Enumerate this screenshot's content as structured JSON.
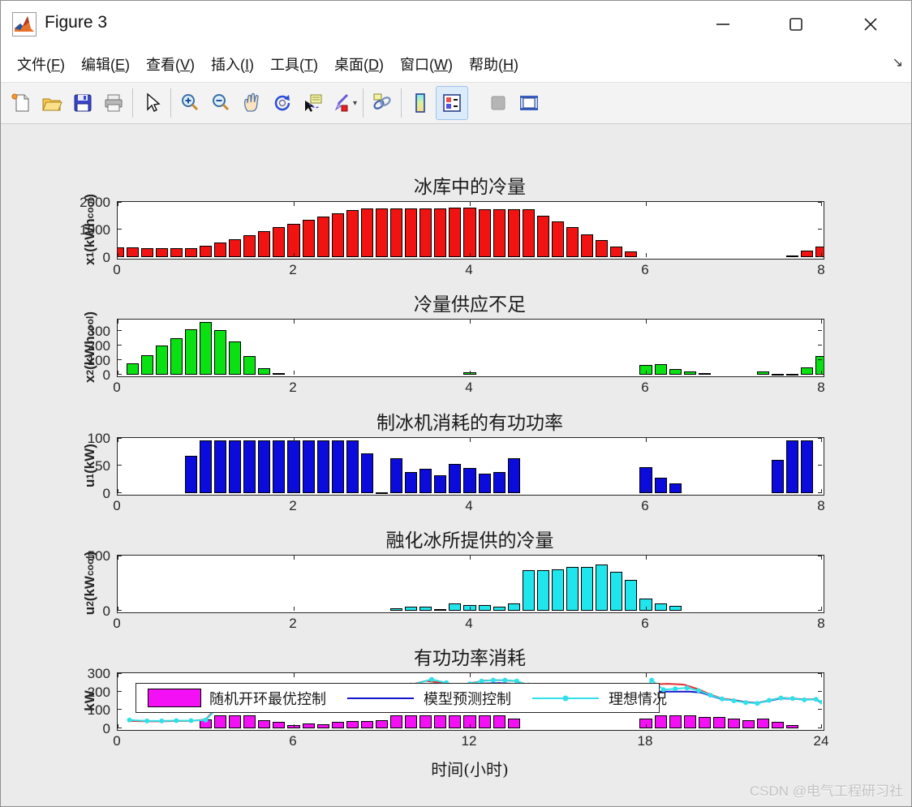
{
  "window": {
    "title": "Figure 3",
    "controls": {
      "minimize": "minimize",
      "maximize": "maximize",
      "close": "close"
    }
  },
  "menu": {
    "items": [
      {
        "text": "文件",
        "key": "F"
      },
      {
        "text": "编辑",
        "key": "E"
      },
      {
        "text": "查看",
        "key": "V"
      },
      {
        "text": "插入",
        "key": "I"
      },
      {
        "text": "工具",
        "key": "T"
      },
      {
        "text": "桌面",
        "key": "D"
      },
      {
        "text": "窗口",
        "key": "W"
      },
      {
        "text": "帮助",
        "key": "H"
      }
    ],
    "dock_arrow": "↘"
  },
  "toolbar": {
    "icons": [
      "new-figure",
      "open-file",
      "save-figure",
      "print-figure",
      "edit-plot-pointer",
      "zoom-in",
      "zoom-out",
      "pan-hand",
      "rotate-3d",
      "data-cursor",
      "brush-data",
      "link-plot",
      "insert-colorbar",
      "insert-legend",
      "disabled-tool",
      "plot-tools"
    ]
  },
  "watermark": "CSDN @电气工程研习社",
  "colors": {
    "bar_red": "#f01311",
    "bar_green": "#09e113",
    "bar_blue": "#0b0bdb",
    "bar_cyan": "#1fe6ec",
    "bar_magenta": "#f410f4",
    "line_red": "#e03131",
    "line_blue": "#1414cc",
    "line_cyan": "#2fe0e8",
    "figure_bg": "#ebebeb",
    "axes_bg": "#ffffff"
  },
  "chart_data": [
    {
      "type": "bar",
      "title": "冰库中的冷量",
      "ylabel": "x~1~(kWh~cool~)",
      "xlim": [
        0,
        8
      ],
      "ylim": [
        0,
        2000
      ],
      "xticks": [
        0,
        2,
        4,
        6,
        8
      ],
      "yticks": [
        0,
        1000,
        2000
      ],
      "bar_color": "#f01311",
      "bar_start": 0,
      "bar_step": 0.166667,
      "bar_width": 0.14,
      "values": [
        350,
        360,
        330,
        330,
        330,
        330,
        420,
        530,
        650,
        800,
        950,
        1080,
        1220,
        1350,
        1480,
        1600,
        1700,
        1780,
        1760,
        1780,
        1780,
        1780,
        1780,
        1790,
        1790,
        1750,
        1750,
        1750,
        1750,
        1500,
        1300,
        1080,
        830,
        620,
        380,
        200,
        0,
        0,
        0,
        0,
        0,
        0,
        0,
        0,
        0,
        0,
        60,
        230,
        380
      ]
    },
    {
      "type": "bar",
      "title": "冷量供应不足",
      "ylabel": "x~2~(kWh~cool~)",
      "xlim": [
        0,
        8
      ],
      "ylim": [
        0,
        375
      ],
      "xticks": [
        0,
        2,
        4,
        6,
        8
      ],
      "yticks": [
        0,
        100,
        200,
        300
      ],
      "bar_color": "#09e113",
      "bar_start": 0,
      "bar_step": 0.166667,
      "bar_width": 0.14,
      "values": [
        0,
        75,
        135,
        200,
        250,
        310,
        360,
        305,
        225,
        125,
        45,
        12,
        0,
        0,
        0,
        0,
        0,
        0,
        0,
        0,
        0,
        0,
        0,
        0,
        15,
        0,
        0,
        0,
        0,
        0,
        0,
        0,
        0,
        0,
        0,
        0,
        65,
        70,
        38,
        20,
        10,
        0,
        0,
        0,
        20,
        5,
        8,
        50,
        125
      ]
    },
    {
      "type": "bar",
      "title": "制冰机消耗的有功功率",
      "ylabel": "u~1~(kW)",
      "xlim": [
        0,
        8
      ],
      "ylim": [
        0,
        100
      ],
      "xticks": [
        0,
        2,
        4,
        6,
        8
      ],
      "yticks": [
        0,
        50,
        100
      ],
      "bar_color": "#0b0bdb",
      "bar_start": 0,
      "bar_step": 0.166667,
      "bar_width": 0.14,
      "values": [
        0,
        0,
        0,
        0,
        0,
        67,
        95,
        95,
        95,
        95,
        95,
        95,
        95,
        95,
        95,
        95,
        95,
        72,
        2,
        63,
        38,
        44,
        33,
        53,
        45,
        36,
        39,
        63,
        0,
        0,
        0,
        0,
        0,
        0,
        0,
        0,
        47,
        28,
        17,
        0,
        0,
        0,
        0,
        0,
        0,
        61,
        95,
        95,
        0
      ]
    },
    {
      "type": "bar",
      "title": "融化冰所提供的冷量",
      "ylabel": "u~2~(kW~cool~)",
      "xlim": [
        0,
        8
      ],
      "ylim": [
        0,
        500
      ],
      "xticks": [
        0,
        2,
        4,
        6,
        8
      ],
      "yticks": [
        0,
        500
      ],
      "bar_color": "#1fe6ec",
      "bar_start": 0,
      "bar_step": 0.166667,
      "bar_width": 0.14,
      "values": [
        0,
        0,
        0,
        0,
        0,
        0,
        0,
        0,
        0,
        0,
        0,
        0,
        0,
        0,
        0,
        0,
        0,
        0,
        0,
        25,
        35,
        35,
        15,
        65,
        55,
        55,
        35,
        70,
        370,
        365,
        375,
        400,
        400,
        420,
        350,
        280,
        110,
        65,
        45,
        0,
        0,
        0,
        0,
        0,
        0,
        0,
        0,
        0,
        0
      ]
    },
    {
      "type": "bar+line",
      "title": "有功功率消耗",
      "ylabel": "kW",
      "xlabel": "时间(小时)",
      "xlim": [
        0,
        24
      ],
      "ylim": [
        0,
        300
      ],
      "xticks": [
        0,
        6,
        12,
        18,
        24
      ],
      "yticks": [
        0,
        100,
        200,
        300
      ],
      "bar_color": "#f410f4",
      "bar_start": 0,
      "bar_step": 0.5,
      "bar_width": 0.42,
      "values": [
        0,
        0,
        0,
        0,
        0,
        0,
        50,
        70,
        72,
        72,
        45,
        35,
        18,
        28,
        22,
        35,
        38,
        42,
        45,
        70,
        72,
        72,
        72,
        72,
        72,
        72,
        72,
        52,
        0,
        0,
        0,
        0,
        0,
        0,
        0,
        0,
        55,
        72,
        72,
        72,
        62,
        62,
        52,
        45,
        55,
        35,
        20,
        0,
        0
      ],
      "legend": [
        {
          "label": "随机开环最优控制",
          "swatch": "bar",
          "color": "#f410f4"
        },
        {
          "label": "模型预测控制",
          "swatch": "line",
          "color": "#1414cc"
        },
        {
          "label": "理想情况",
          "swatch": "line-marker",
          "color": "#2fe0e8"
        }
      ],
      "lines": [
        {
          "name": "stochastic-open-loop-line",
          "color": "#e03131",
          "width": 2,
          "markers": false,
          "points": [
            [
              0.4,
              40
            ],
            [
              1,
              38
            ],
            [
              1.5,
              38
            ],
            [
              2,
              40
            ],
            [
              2.5,
              40
            ],
            [
              3,
              48
            ],
            [
              3.5,
              135
            ],
            [
              4,
              165
            ],
            [
              4.5,
              175
            ],
            [
              5,
              180
            ],
            [
              5.5,
              170
            ],
            [
              6,
              158
            ],
            [
              6.5,
              160
            ],
            [
              7,
              165
            ],
            [
              7.5,
              172
            ],
            [
              8,
              178
            ],
            [
              8.5,
              188
            ],
            [
              9,
              205
            ],
            [
              9.5,
              222
            ],
            [
              10,
              238
            ],
            [
              10.5,
              258
            ],
            [
              11,
              248
            ],
            [
              11.5,
              235
            ],
            [
              12,
              245
            ],
            [
              12.5,
              260
            ],
            [
              13,
              262
            ],
            [
              13.5,
              258
            ],
            [
              14,
              238
            ],
            [
              14.5,
              222
            ],
            [
              15,
              212
            ],
            [
              15.5,
              206
            ],
            [
              16,
              202
            ],
            [
              16.5,
              200
            ],
            [
              17,
              202
            ],
            [
              17.5,
              204
            ],
            [
              18,
              208
            ],
            [
              18.3,
              240
            ],
            [
              18.8,
              242
            ],
            [
              19.3,
              238
            ],
            [
              19.8,
              212
            ],
            [
              20.2,
              183
            ],
            [
              20.6,
              162
            ],
            [
              21,
              154
            ],
            [
              21.4,
              143
            ],
            [
              21.8,
              138
            ],
            [
              22.2,
              153
            ],
            [
              22.6,
              166
            ],
            [
              23,
              163
            ],
            [
              23.4,
              157
            ],
            [
              23.8,
              159
            ],
            [
              24,
              136
            ]
          ]
        },
        {
          "name": "model-predictive-control-line",
          "color": "#1414cc",
          "width": 2,
          "markers": false,
          "points": [
            [
              3.5,
              125
            ],
            [
              4,
              155
            ],
            [
              4.5,
              165
            ],
            [
              5,
              172
            ],
            [
              5.5,
              165
            ],
            [
              6,
              152
            ],
            [
              6.5,
              156
            ],
            [
              7,
              160
            ],
            [
              7.5,
              168
            ],
            [
              8,
              172
            ],
            [
              8.5,
              182
            ],
            [
              9,
              198
            ],
            [
              9.5,
              215
            ],
            [
              10,
              228
            ],
            [
              10.5,
              238
            ],
            [
              11,
              235
            ],
            [
              11.5,
              228
            ],
            [
              12,
              236
            ],
            [
              12.5,
              244
            ],
            [
              13,
              246
            ],
            [
              13.5,
              242
            ],
            [
              14,
              228
            ],
            [
              14.5,
              215
            ],
            [
              15,
              205
            ],
            [
              15.5,
              200
            ],
            [
              16,
              200
            ],
            [
              16.5,
              200
            ],
            [
              17,
              200
            ],
            [
              17.5,
              200
            ],
            [
              18,
              200
            ],
            [
              18.5,
              200
            ],
            [
              19,
              200
            ],
            [
              19.5,
              200
            ],
            [
              19.9,
              194
            ],
            [
              20.2,
              178
            ],
            [
              20.6,
              158
            ],
            [
              21,
              152
            ],
            [
              21.4,
              141
            ],
            [
              21.8,
              137
            ],
            [
              22.2,
              150
            ],
            [
              22.6,
              163
            ],
            [
              23,
              161
            ],
            [
              23.4,
              156
            ],
            [
              23.8,
              157
            ],
            [
              24,
              138
            ]
          ]
        },
        {
          "name": "ideal-case-line",
          "color": "#2fe0e8",
          "width": 2,
          "markers": true,
          "points": [
            [
              0.4,
              45
            ],
            [
              1,
              40
            ],
            [
              1.5,
              40
            ],
            [
              2,
              42
            ],
            [
              2.5,
              42
            ],
            [
              3,
              45
            ],
            [
              3.5,
              128
            ],
            [
              4,
              158
            ],
            [
              4.5,
              168
            ],
            [
              5,
              175
            ],
            [
              5.5,
              168
            ],
            [
              6,
              152
            ],
            [
              6.5,
              157
            ],
            [
              7,
              162
            ],
            [
              7.5,
              170
            ],
            [
              8,
              175
            ],
            [
              8.5,
              186
            ],
            [
              9,
              202
            ],
            [
              9.5,
              220
            ],
            [
              10,
              236
            ],
            [
              10.7,
              266
            ],
            [
              11.2,
              248
            ],
            [
              11.6,
              233
            ],
            [
              12,
              242
            ],
            [
              12.4,
              257
            ],
            [
              12.8,
              262
            ],
            [
              13.2,
              262
            ],
            [
              13.6,
              257
            ],
            [
              14,
              236
            ],
            [
              14.5,
              220
            ],
            [
              15,
              210
            ],
            [
              15.5,
              204
            ],
            [
              16,
              200
            ],
            [
              16.5,
              200
            ],
            [
              17,
              201
            ],
            [
              17.5,
              203
            ],
            [
              18,
              206
            ],
            [
              18.2,
              262
            ],
            [
              18.6,
              210
            ],
            [
              19,
              215
            ],
            [
              19.4,
              220
            ],
            [
              19.8,
              205
            ],
            [
              20.2,
              180
            ],
            [
              20.6,
              160
            ],
            [
              21,
              150
            ],
            [
              21.4,
              140
            ],
            [
              21.8,
              136
            ],
            [
              22.2,
              152
            ],
            [
              22.6,
              165
            ],
            [
              23,
              162
            ],
            [
              23.4,
              155
            ],
            [
              23.8,
              158
            ],
            [
              24,
              142
            ]
          ]
        }
      ]
    }
  ]
}
